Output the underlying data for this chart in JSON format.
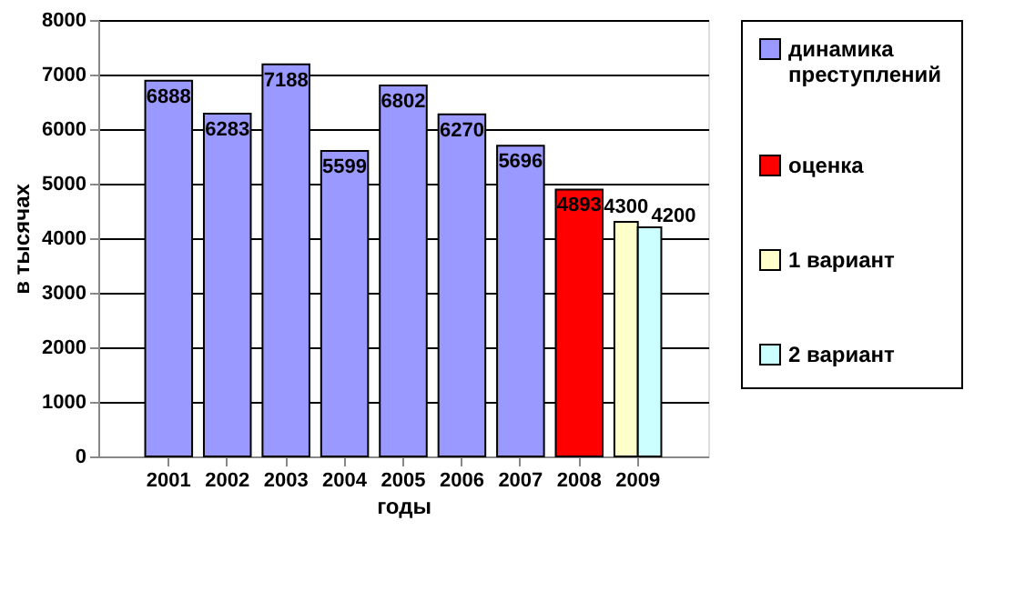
{
  "chart_data": {
    "type": "bar",
    "xlabel": "годы",
    "ylabel": "в тысячах",
    "categories": [
      "2001",
      "2002",
      "2003",
      "2004",
      "2005",
      "2006",
      "2007",
      "2008",
      "2009"
    ],
    "series": [
      {
        "name": "динамика преступлений",
        "color": "#9999ff",
        "values": [
          6888,
          6283,
          7188,
          5599,
          6802,
          6270,
          5696,
          null,
          null
        ]
      },
      {
        "name": "оценка",
        "color": "#ff0000",
        "values": [
          null,
          null,
          null,
          null,
          null,
          null,
          null,
          4893,
          null
        ]
      },
      {
        "name": "1 вариант",
        "color": "#ffffcc",
        "values": [
          null,
          null,
          null,
          null,
          null,
          null,
          null,
          null,
          4300
        ]
      },
      {
        "name": "2 вариант",
        "color": "#ccffff",
        "values": [
          null,
          null,
          null,
          null,
          null,
          null,
          null,
          null,
          4200
        ]
      }
    ],
    "ylim": [
      0,
      8000
    ],
    "yticks": [
      0,
      1000,
      2000,
      3000,
      4000,
      5000,
      6000,
      7000,
      8000
    ],
    "grid": "y",
    "legend": "right",
    "data_labels": true
  }
}
